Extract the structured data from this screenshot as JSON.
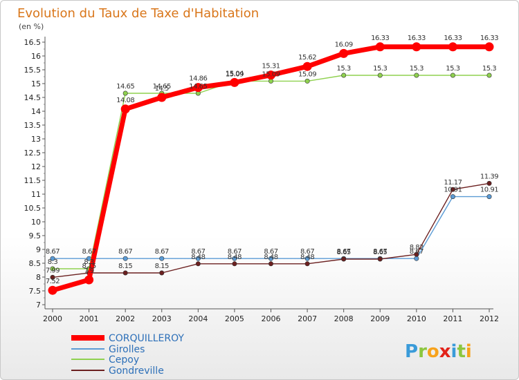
{
  "chart_data": {
    "type": "line",
    "title": "Evolution du Taux de Taxe d'Habitation",
    "subtitle": "(en %)",
    "xlabel": "",
    "ylabel": "",
    "x": [
      "2000",
      "2001",
      "2002",
      "2003",
      "2004",
      "2005",
      "2006",
      "2007",
      "2008",
      "2009",
      "2010",
      "2011",
      "2012"
    ],
    "ylim": [
      7,
      16.5
    ],
    "yticks": [
      "7",
      "7.5",
      "8",
      "8.5",
      "9",
      "9.5",
      "10",
      "10.5",
      "11",
      "11.5",
      "12",
      "12.5",
      "13",
      "13.5",
      "14",
      "14.5",
      "15",
      "15.5",
      "16",
      "16.5"
    ],
    "grid": false,
    "legend_position": "bottom-left",
    "series": [
      {
        "name": "CORQUILLEROY",
        "color": "#ff0000",
        "values": [
          7.52,
          7.9,
          14.08,
          14.5,
          14.86,
          15.04,
          15.31,
          15.62,
          16.09,
          16.33,
          16.33,
          16.33,
          16.33
        ],
        "labels": [
          "7.52",
          "7.9",
          "14.08",
          "14.5",
          "14.86",
          "15.04",
          "15.31",
          "15.62",
          "16.09",
          "16.33",
          "16.33",
          "16.33",
          "16.33"
        ]
      },
      {
        "name": "Girolles",
        "color": "#5b9bd5",
        "values": [
          8.67,
          8.67,
          8.67,
          8.67,
          8.67,
          8.67,
          8.67,
          8.67,
          8.67,
          8.67,
          8.67,
          10.91,
          10.91
        ],
        "labels": [
          "8.67",
          "8.67",
          "8.67",
          "8.67",
          "8.67",
          "8.67",
          "8.67",
          "8.67",
          "8.67",
          "8.67",
          "8.67",
          "10.91",
          "10.91"
        ]
      },
      {
        "name": "Cepoy",
        "color": "#8fd14f",
        "values": [
          8.3,
          8.3,
          14.65,
          14.65,
          14.65,
          15.09,
          15.09,
          15.09,
          15.3,
          15.3,
          15.3,
          15.3,
          15.3
        ],
        "labels": [
          "8.3",
          "8.3",
          "14.65",
          "14.65",
          "14.65",
          "15.09",
          "15.09",
          "15.09",
          "15.3",
          "15.3",
          "15.3",
          "15.3",
          "15.3"
        ]
      },
      {
        "name": "Gondreville",
        "color": "#6b1f1f",
        "values": [
          7.99,
          8.15,
          8.15,
          8.15,
          8.48,
          8.48,
          8.48,
          8.48,
          8.65,
          8.65,
          8.82,
          11.17,
          11.39
        ],
        "labels": [
          "7.99",
          "8.15",
          "8.15",
          "8.15",
          "8.48",
          "8.48",
          "8.48",
          "8.48",
          "8.65",
          "8.65",
          "8.82",
          "11.17",
          "11.39"
        ]
      }
    ]
  },
  "logo": {
    "text": "Proxiti",
    "letters": [
      {
        "ch": "P",
        "color": "#3a9bd9"
      },
      {
        "ch": "r",
        "color": "#8cc63f"
      },
      {
        "ch": "o",
        "color": "#f7a21b"
      },
      {
        "ch": "x",
        "color": "#e2231a"
      },
      {
        "ch": "i",
        "color": "#3a9bd9"
      },
      {
        "ch": "t",
        "color": "#8cc63f"
      },
      {
        "ch": "i",
        "color": "#f7a21b"
      }
    ]
  }
}
